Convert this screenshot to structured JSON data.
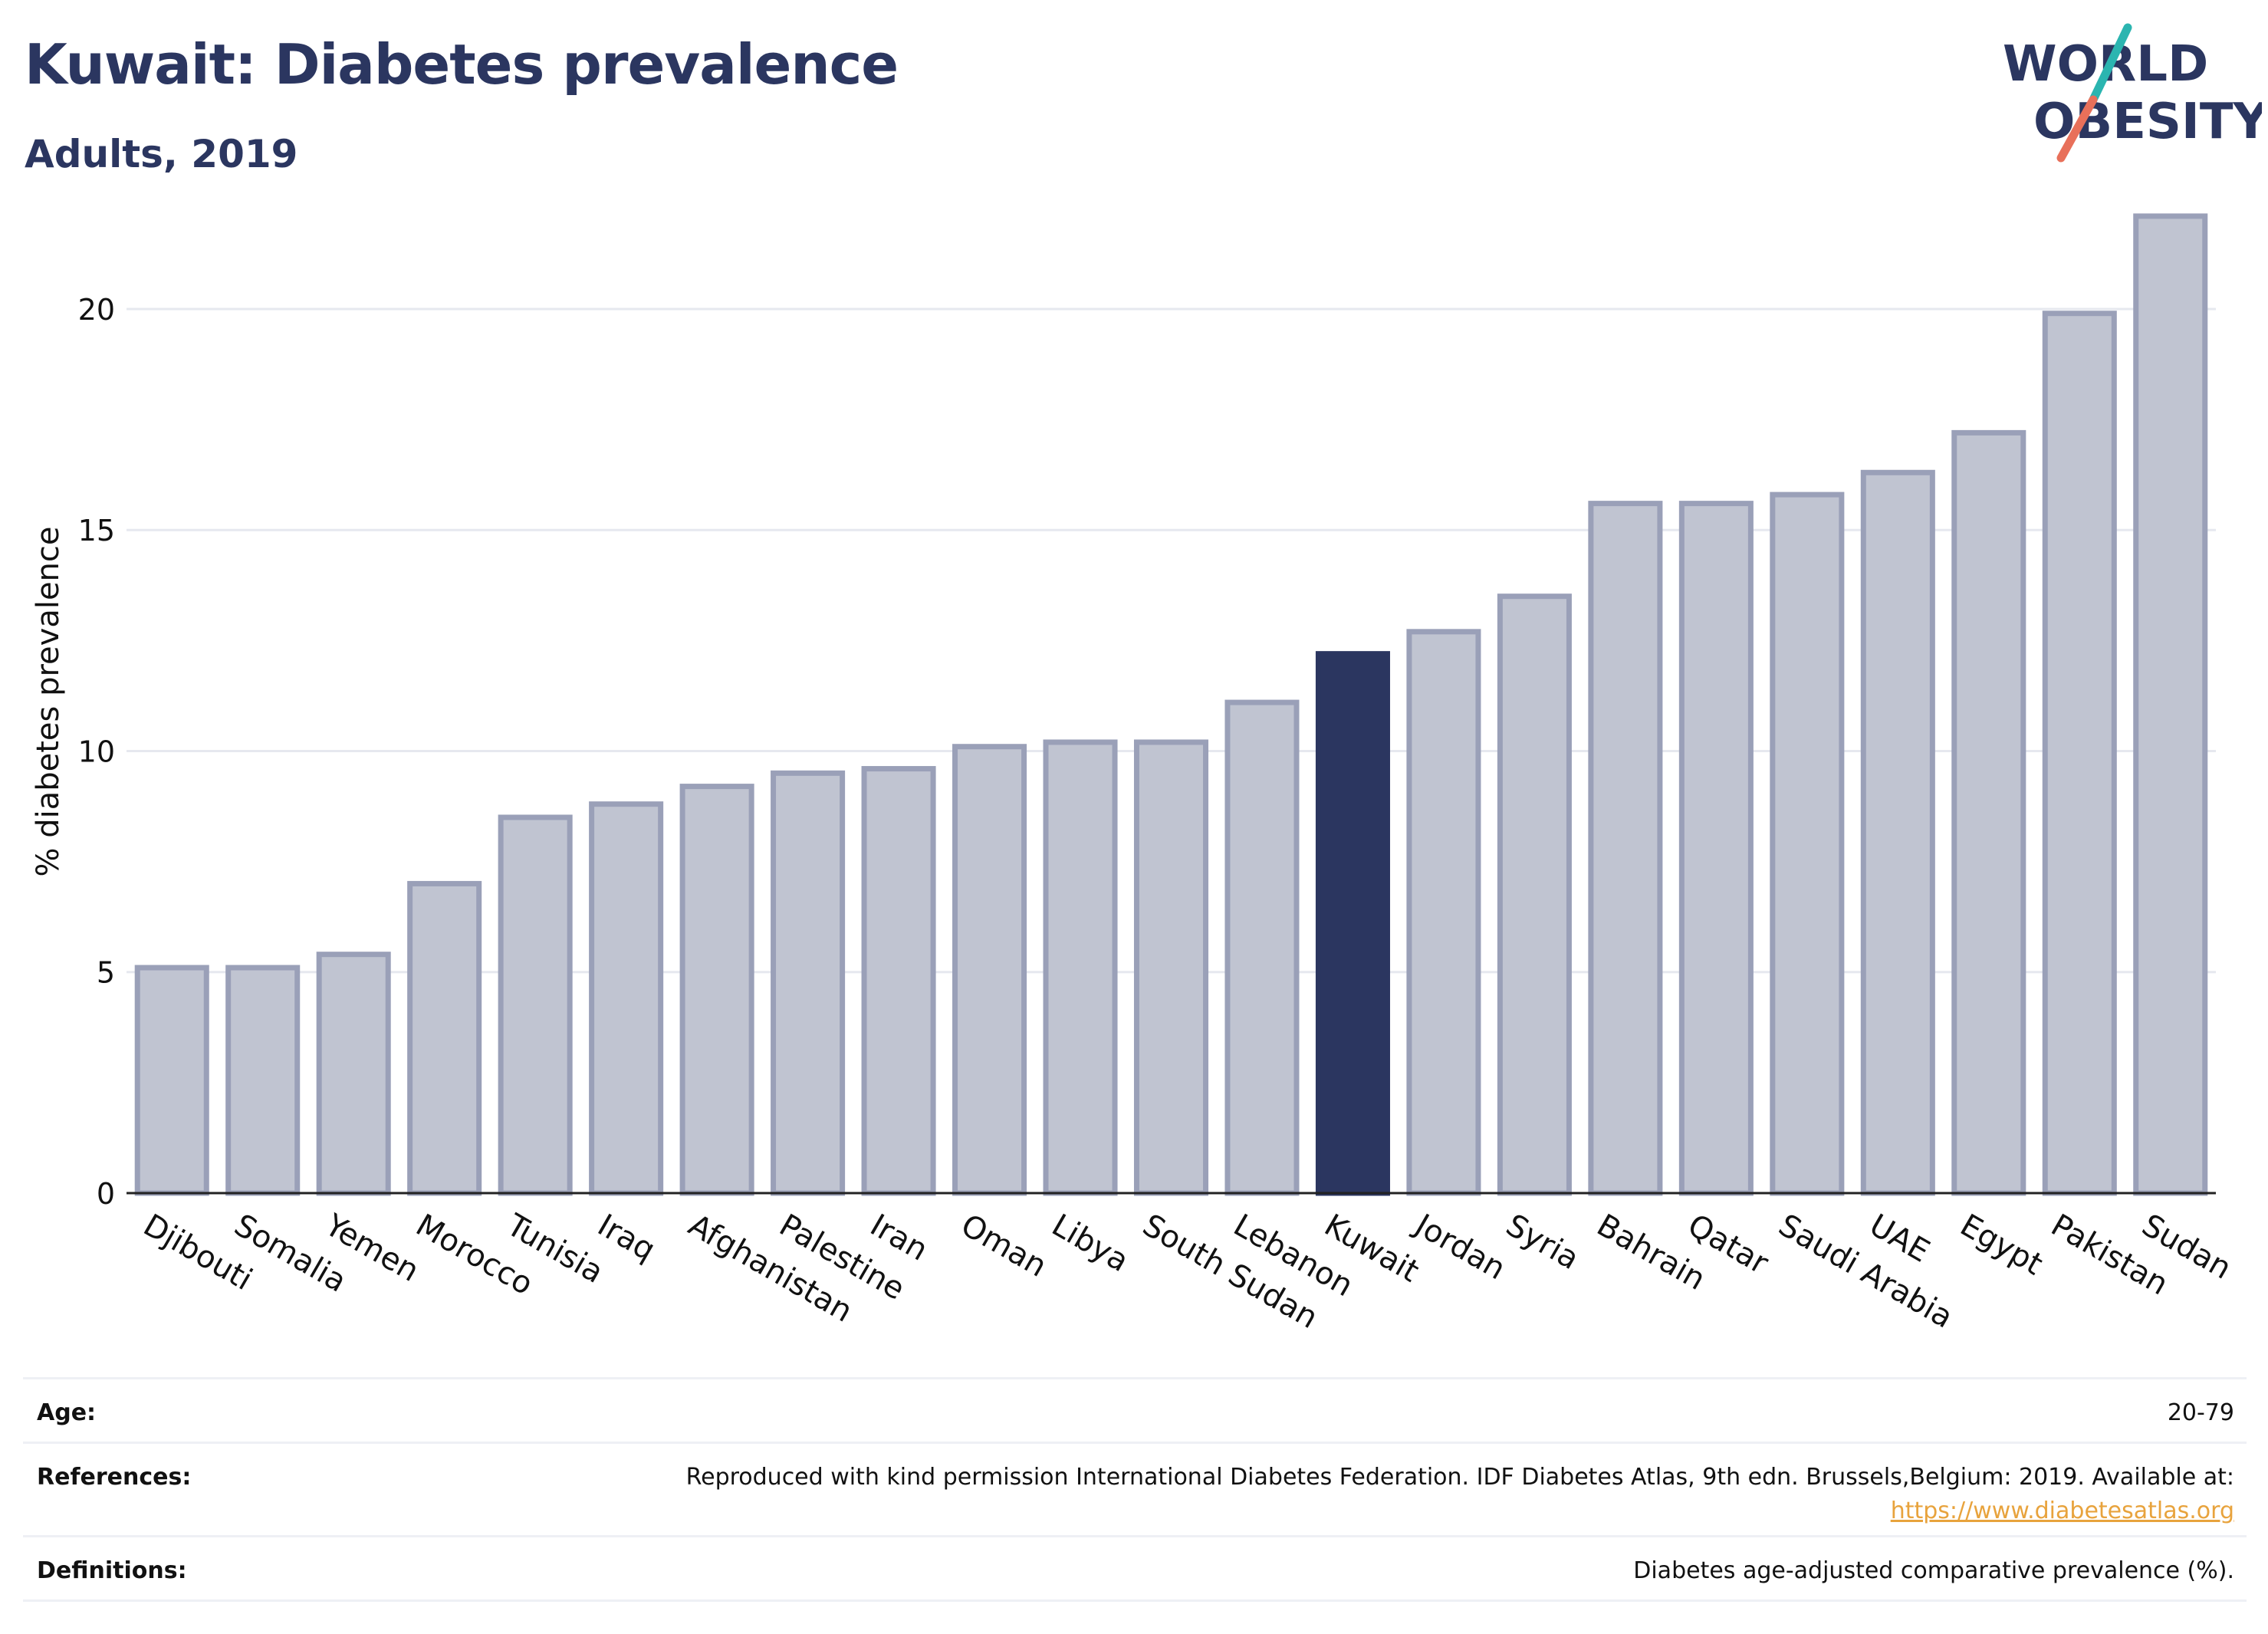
{
  "header": {
    "title": "Kuwait: Diabetes prevalence",
    "subtitle": "Adults, 2019"
  },
  "logo": {
    "line1": "WORLD",
    "line2": "OBESITY",
    "text_color": "#2b3660",
    "slash_top_color": "#2bb5b0",
    "slash_bottom_color": "#e8705a"
  },
  "chart_data": {
    "type": "bar",
    "ylabel": "% diabetes prevalence",
    "xlabel": "",
    "ylim": [
      0,
      23
    ],
    "yticks": [
      0,
      5,
      10,
      15,
      20
    ],
    "grid": true,
    "highlight": "Kuwait",
    "highlight_color": "#2b3660",
    "bar_color": "#c0c4d1",
    "bar_edge_color": "#9aa0b8",
    "categories": [
      "Djibouti",
      "Somalia",
      "Yemen",
      "Morocco",
      "Tunisia",
      "Iraq",
      "Afghanistan",
      "Palestine",
      "Iran",
      "Oman",
      "Libya",
      "South Sudan",
      "Lebanon",
      "Kuwait",
      "Jordan",
      "Syria",
      "Bahrain",
      "Qatar",
      "Saudi Arabia",
      "UAE",
      "Egypt",
      "Pakistan",
      "Sudan"
    ],
    "values": [
      5.1,
      5.1,
      5.4,
      7.0,
      8.5,
      8.8,
      9.2,
      9.5,
      9.6,
      10.1,
      10.2,
      10.2,
      11.1,
      12.2,
      12.7,
      13.5,
      15.6,
      15.6,
      15.8,
      16.3,
      17.2,
      19.9,
      22.1
    ]
  },
  "info": {
    "age_label": "Age:",
    "age_value": "20-79",
    "references_label": "References:",
    "references_text": "Reproduced with kind permission International Diabetes Federation. IDF Diabetes Atlas, 9th edn. Brussels,Belgium: 2019. Available at:",
    "references_link": "https://www.diabetesatlas.org",
    "definitions_label": "Definitions:",
    "definitions_value": "Diabetes age-adjusted comparative prevalence (%)."
  }
}
